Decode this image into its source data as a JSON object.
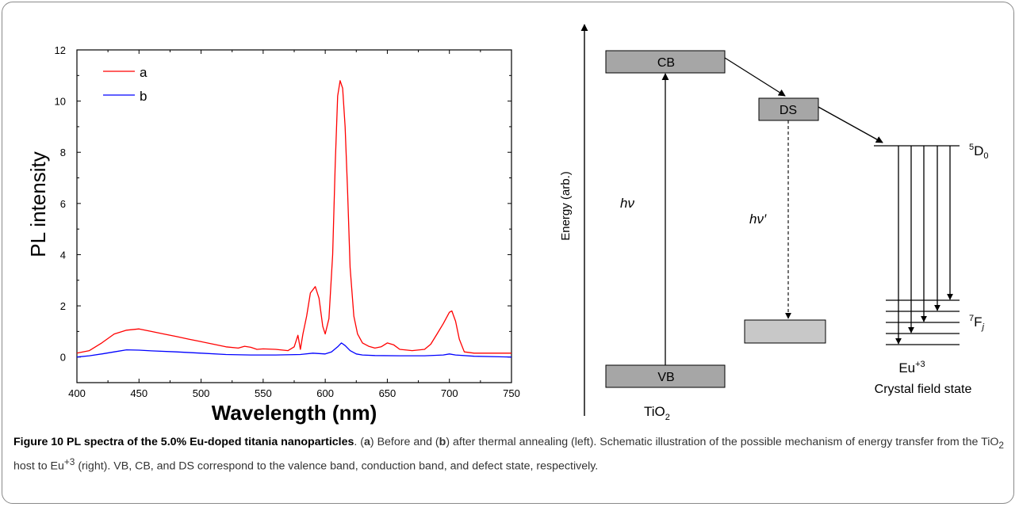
{
  "chart_data": {
    "type": "line",
    "xlabel": "Wavelength (nm)",
    "ylabel": "PL intensity",
    "xlim": [
      400,
      750
    ],
    "ylim": [
      -1,
      12
    ],
    "x_ticks": [
      400,
      450,
      500,
      550,
      600,
      650,
      700,
      750
    ],
    "y_ticks": [
      0,
      2,
      4,
      6,
      8,
      10,
      12
    ],
    "legend_position": "top-left",
    "series": [
      {
        "name": "a",
        "color": "#ff0000",
        "x": [
          400,
          410,
          420,
          430,
          440,
          450,
          460,
          470,
          480,
          490,
          500,
          510,
          520,
          530,
          535,
          540,
          545,
          550,
          560,
          570,
          575,
          578,
          580,
          582,
          585,
          588,
          592,
          595,
          598,
          600,
          603,
          606,
          608,
          610,
          612,
          614,
          616,
          618,
          620,
          623,
          626,
          630,
          635,
          640,
          645,
          650,
          655,
          660,
          670,
          680,
          685,
          690,
          695,
          700,
          702,
          705,
          708,
          712,
          720,
          730,
          740,
          750
        ],
        "y": [
          0.15,
          0.25,
          0.55,
          0.9,
          1.05,
          1.1,
          1.0,
          0.9,
          0.8,
          0.7,
          0.6,
          0.5,
          0.4,
          0.35,
          0.42,
          0.38,
          0.3,
          0.32,
          0.3,
          0.25,
          0.4,
          0.85,
          0.3,
          0.9,
          1.6,
          2.5,
          2.75,
          2.3,
          1.2,
          0.9,
          1.5,
          4.0,
          7.5,
          10.2,
          10.8,
          10.5,
          9.0,
          6.5,
          3.5,
          1.6,
          0.9,
          0.55,
          0.42,
          0.35,
          0.4,
          0.55,
          0.48,
          0.3,
          0.25,
          0.3,
          0.5,
          0.9,
          1.3,
          1.75,
          1.8,
          1.4,
          0.7,
          0.2,
          0.15,
          0.15,
          0.15,
          0.15
        ]
      },
      {
        "name": "b",
        "color": "#0000ff",
        "x": [
          400,
          410,
          420,
          430,
          440,
          450,
          460,
          480,
          500,
          520,
          540,
          560,
          580,
          590,
          600,
          605,
          610,
          613,
          616,
          620,
          625,
          630,
          640,
          660,
          680,
          695,
          700,
          705,
          720,
          750
        ],
        "y": [
          0.0,
          0.05,
          0.12,
          0.2,
          0.28,
          0.27,
          0.24,
          0.2,
          0.15,
          0.1,
          0.08,
          0.08,
          0.1,
          0.15,
          0.12,
          0.2,
          0.4,
          0.55,
          0.45,
          0.25,
          0.12,
          0.08,
          0.06,
          0.05,
          0.05,
          0.08,
          0.12,
          0.08,
          0.03,
          0.0
        ]
      }
    ]
  },
  "diagram": {
    "energy_axis_label": "Energy (arb.)",
    "cb_label": "CB",
    "vb_label": "VB",
    "ds_label": "DS",
    "host_label_main": "TiO",
    "host_label_sub": "2",
    "hv_label": "hν",
    "hv_prime_label": "hν′",
    "d0_sup": "5",
    "d0_main": "D",
    "d0_sub": "0",
    "f_sup": "7",
    "f_main": "F",
    "f_sub": "j",
    "eu_main": "Eu",
    "eu_sup": "+3",
    "crystal_field_label": "Crystal field state",
    "colors": {
      "band_fill": "#a6a6a6",
      "trap_fill": "#c8c8c8",
      "line": "#000000"
    }
  },
  "caption": {
    "title": "Figure 10 PL spectra of the 5.0% Eu-doped titania nanoparticles",
    "p1": ". (",
    "a": "a",
    "p2": ") Before and (",
    "b": "b",
    "p3": ") after thermal annealing (left). Schematic illustration of the possible mechanism of energy transfer from the TiO",
    "sub2": "2",
    "p4": " host to Eu",
    "sup3": "+3",
    "p5": " (right). VB, CB, and DS correspond to the valence band, conduction band, and defect state, respectively."
  }
}
